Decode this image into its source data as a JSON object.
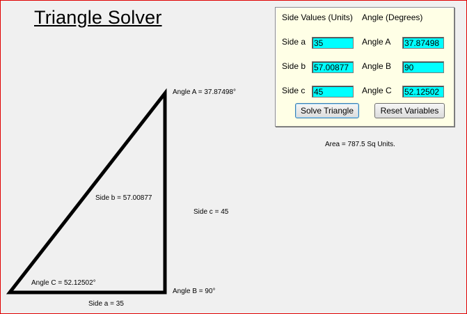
{
  "title": "Triangle Solver",
  "panel": {
    "side_header": "Side Values (Units)",
    "angle_header": "Angle (Degrees)",
    "rows": [
      {
        "side_label": "Side a",
        "side_value": "35",
        "angle_label": "Angle A",
        "angle_value": "37.87498"
      },
      {
        "side_label": "Side b",
        "side_value": "57.00877",
        "angle_label": "Angle B",
        "angle_value": "90"
      },
      {
        "side_label": "Side c",
        "side_value": "45",
        "angle_label": "Angle C",
        "angle_value": "52.12502"
      }
    ],
    "solve_label": "Solve Triangle",
    "reset_label": "Reset Variables"
  },
  "area_text": "Area = 787.5 Sq Units.",
  "diagram": {
    "angle_a": "Angle A = 37.87498°",
    "angle_b": "Angle B = 90°",
    "angle_c": "Angle C = 52.12502°",
    "side_a": "Side a = 35",
    "side_b": "Side b = 57.00877",
    "side_c": "Side c = 45"
  },
  "colors": {
    "field_bg": "#00ffff",
    "panel_bg": "#ffffe6",
    "border": "#e00000"
  }
}
